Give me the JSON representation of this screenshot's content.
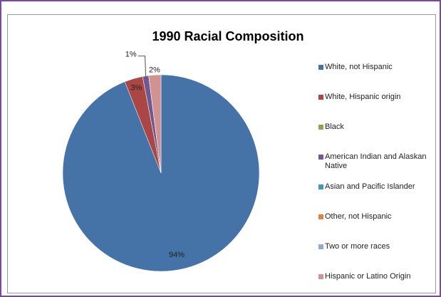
{
  "chart_data": {
    "type": "pie",
    "title": "1990 Racial Composition",
    "categories": [
      "White, not Hispanic",
      "White, Hispanic origin",
      "Black",
      "American Indian and Alaskan Native",
      "Asian and Pacific Islander",
      "Other, not Hispanic",
      "Two or more races",
      "Hispanic or Latino Origin"
    ],
    "values": [
      94,
      3,
      0,
      1,
      0,
      0,
      0,
      2
    ],
    "value_labels": [
      "94%",
      "3%",
      null,
      "1%",
      null,
      null,
      null,
      "2%"
    ],
    "colors": [
      "#4572a7",
      "#aa4643",
      "#89a54e",
      "#71588f",
      "#4198af",
      "#db843d",
      "#93a9cf",
      "#d19392"
    ],
    "legend": "right"
  }
}
